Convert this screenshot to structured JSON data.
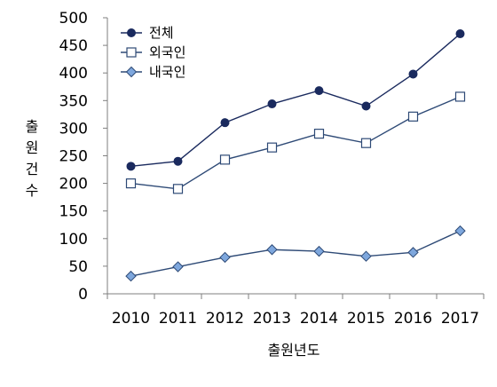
{
  "chart_data": {
    "type": "line",
    "x": [
      "2010",
      "2011",
      "2012",
      "2013",
      "2014",
      "2015",
      "2016",
      "2017"
    ],
    "xlabel": "출원년도",
    "ylabel": "출원건수",
    "ylim": [
      0,
      500
    ],
    "yticks": [
      0,
      50,
      100,
      150,
      200,
      250,
      300,
      350,
      400,
      450,
      500
    ],
    "grid": false,
    "legend_position": "top-left",
    "series": [
      {
        "name": "전체",
        "values": [
          231,
          240,
          310,
          344,
          368,
          340,
          398,
          471
        ],
        "color": "#1a2a5e",
        "marker": "circle"
      },
      {
        "name": "외국인",
        "values": [
          200,
          190,
          243,
          265,
          290,
          273,
          321,
          357
        ],
        "color": "#2e4a76",
        "marker": "square"
      },
      {
        "name": "내국인",
        "values": [
          32,
          49,
          66,
          80,
          77,
          68,
          75,
          114
        ],
        "color": "#2e4a76",
        "marker": "diamond"
      }
    ]
  }
}
